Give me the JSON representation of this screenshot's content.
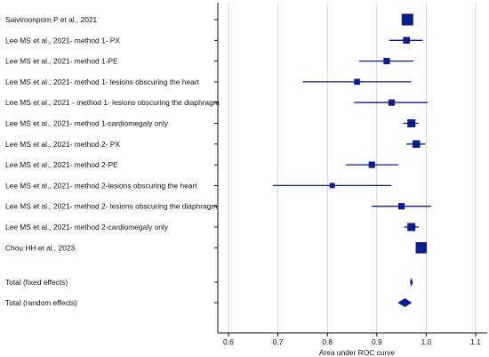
{
  "colors": {
    "marker": "#0b1e8e",
    "grid": "#c8c8c8",
    "axis": "#111111"
  },
  "chart_data": {
    "type": "forest",
    "title": "",
    "xlabel": "Area under ROC curve",
    "ylabel": "",
    "xlim": [
      0.57,
      1.11
    ],
    "xticks": [
      "0.6",
      "0.7",
      "0.8",
      "0.9",
      "1.0",
      "1.1"
    ],
    "grid": true,
    "studies": [
      {
        "label": "Saiviroonporn P et al., 2021",
        "auc": 0.962,
        "lo": 0.962,
        "hi": 0.962,
        "weight": 1.45
      },
      {
        "label": "Lee MS et al., 2021- method 1- PX",
        "auc": 0.96,
        "lo": 0.925,
        "hi": 0.993,
        "weight": 0.85
      },
      {
        "label": "Lee MS et al., 2021- method 1-PE",
        "auc": 0.92,
        "lo": 0.864,
        "hi": 0.974,
        "weight": 0.8
      },
      {
        "label": "Lee MS et al., 2021- method 1- lesions obscuring the heart",
        "auc": 0.86,
        "lo": 0.75,
        "hi": 0.97,
        "weight": 0.75
      },
      {
        "label": "Lee MS et al., 2021 - method 1- lesions obscuring the diaphragm",
        "auc": 0.93,
        "lo": 0.854,
        "hi": 1.003,
        "weight": 0.8
      },
      {
        "label": "Lee MS et al., 2021- method 1-cardiomegaly only",
        "auc": 0.97,
        "lo": 0.953,
        "hi": 0.984,
        "weight": 1.0
      },
      {
        "label": "Lee MS et al., 2021- method 2- PX",
        "auc": 0.98,
        "lo": 0.96,
        "hi": 0.998,
        "weight": 0.95
      },
      {
        "label": "Lee MS et al., 2021- method 2-PE",
        "auc": 0.89,
        "lo": 0.837,
        "hi": 0.944,
        "weight": 0.8
      },
      {
        "label": "Lee MS et al., 2021- method 2-lesions obscuring the heart",
        "auc": 0.81,
        "lo": 0.69,
        "hi": 0.93,
        "weight": 0.65
      },
      {
        "label": "Lee MS et al., 2021- method 2- lesions obscuring the diaphragm",
        "auc": 0.95,
        "lo": 0.89,
        "hi": 1.01,
        "weight": 0.8
      },
      {
        "label": "Lee MS et al., 2021- method 2-cardiomegaly only",
        "auc": 0.97,
        "lo": 0.955,
        "hi": 0.985,
        "weight": 1.0
      },
      {
        "label": "Chou HH et al., 2023",
        "auc": 0.99,
        "lo": 0.99,
        "hi": 0.99,
        "weight": 1.4
      }
    ],
    "summaries": [
      {
        "label": "Total (fixed effects)",
        "auc": 0.97,
        "lo": 0.967,
        "hi": 0.973
      },
      {
        "label": "Total (random effects)",
        "auc": 0.957,
        "lo": 0.942,
        "hi": 0.971
      }
    ]
  }
}
